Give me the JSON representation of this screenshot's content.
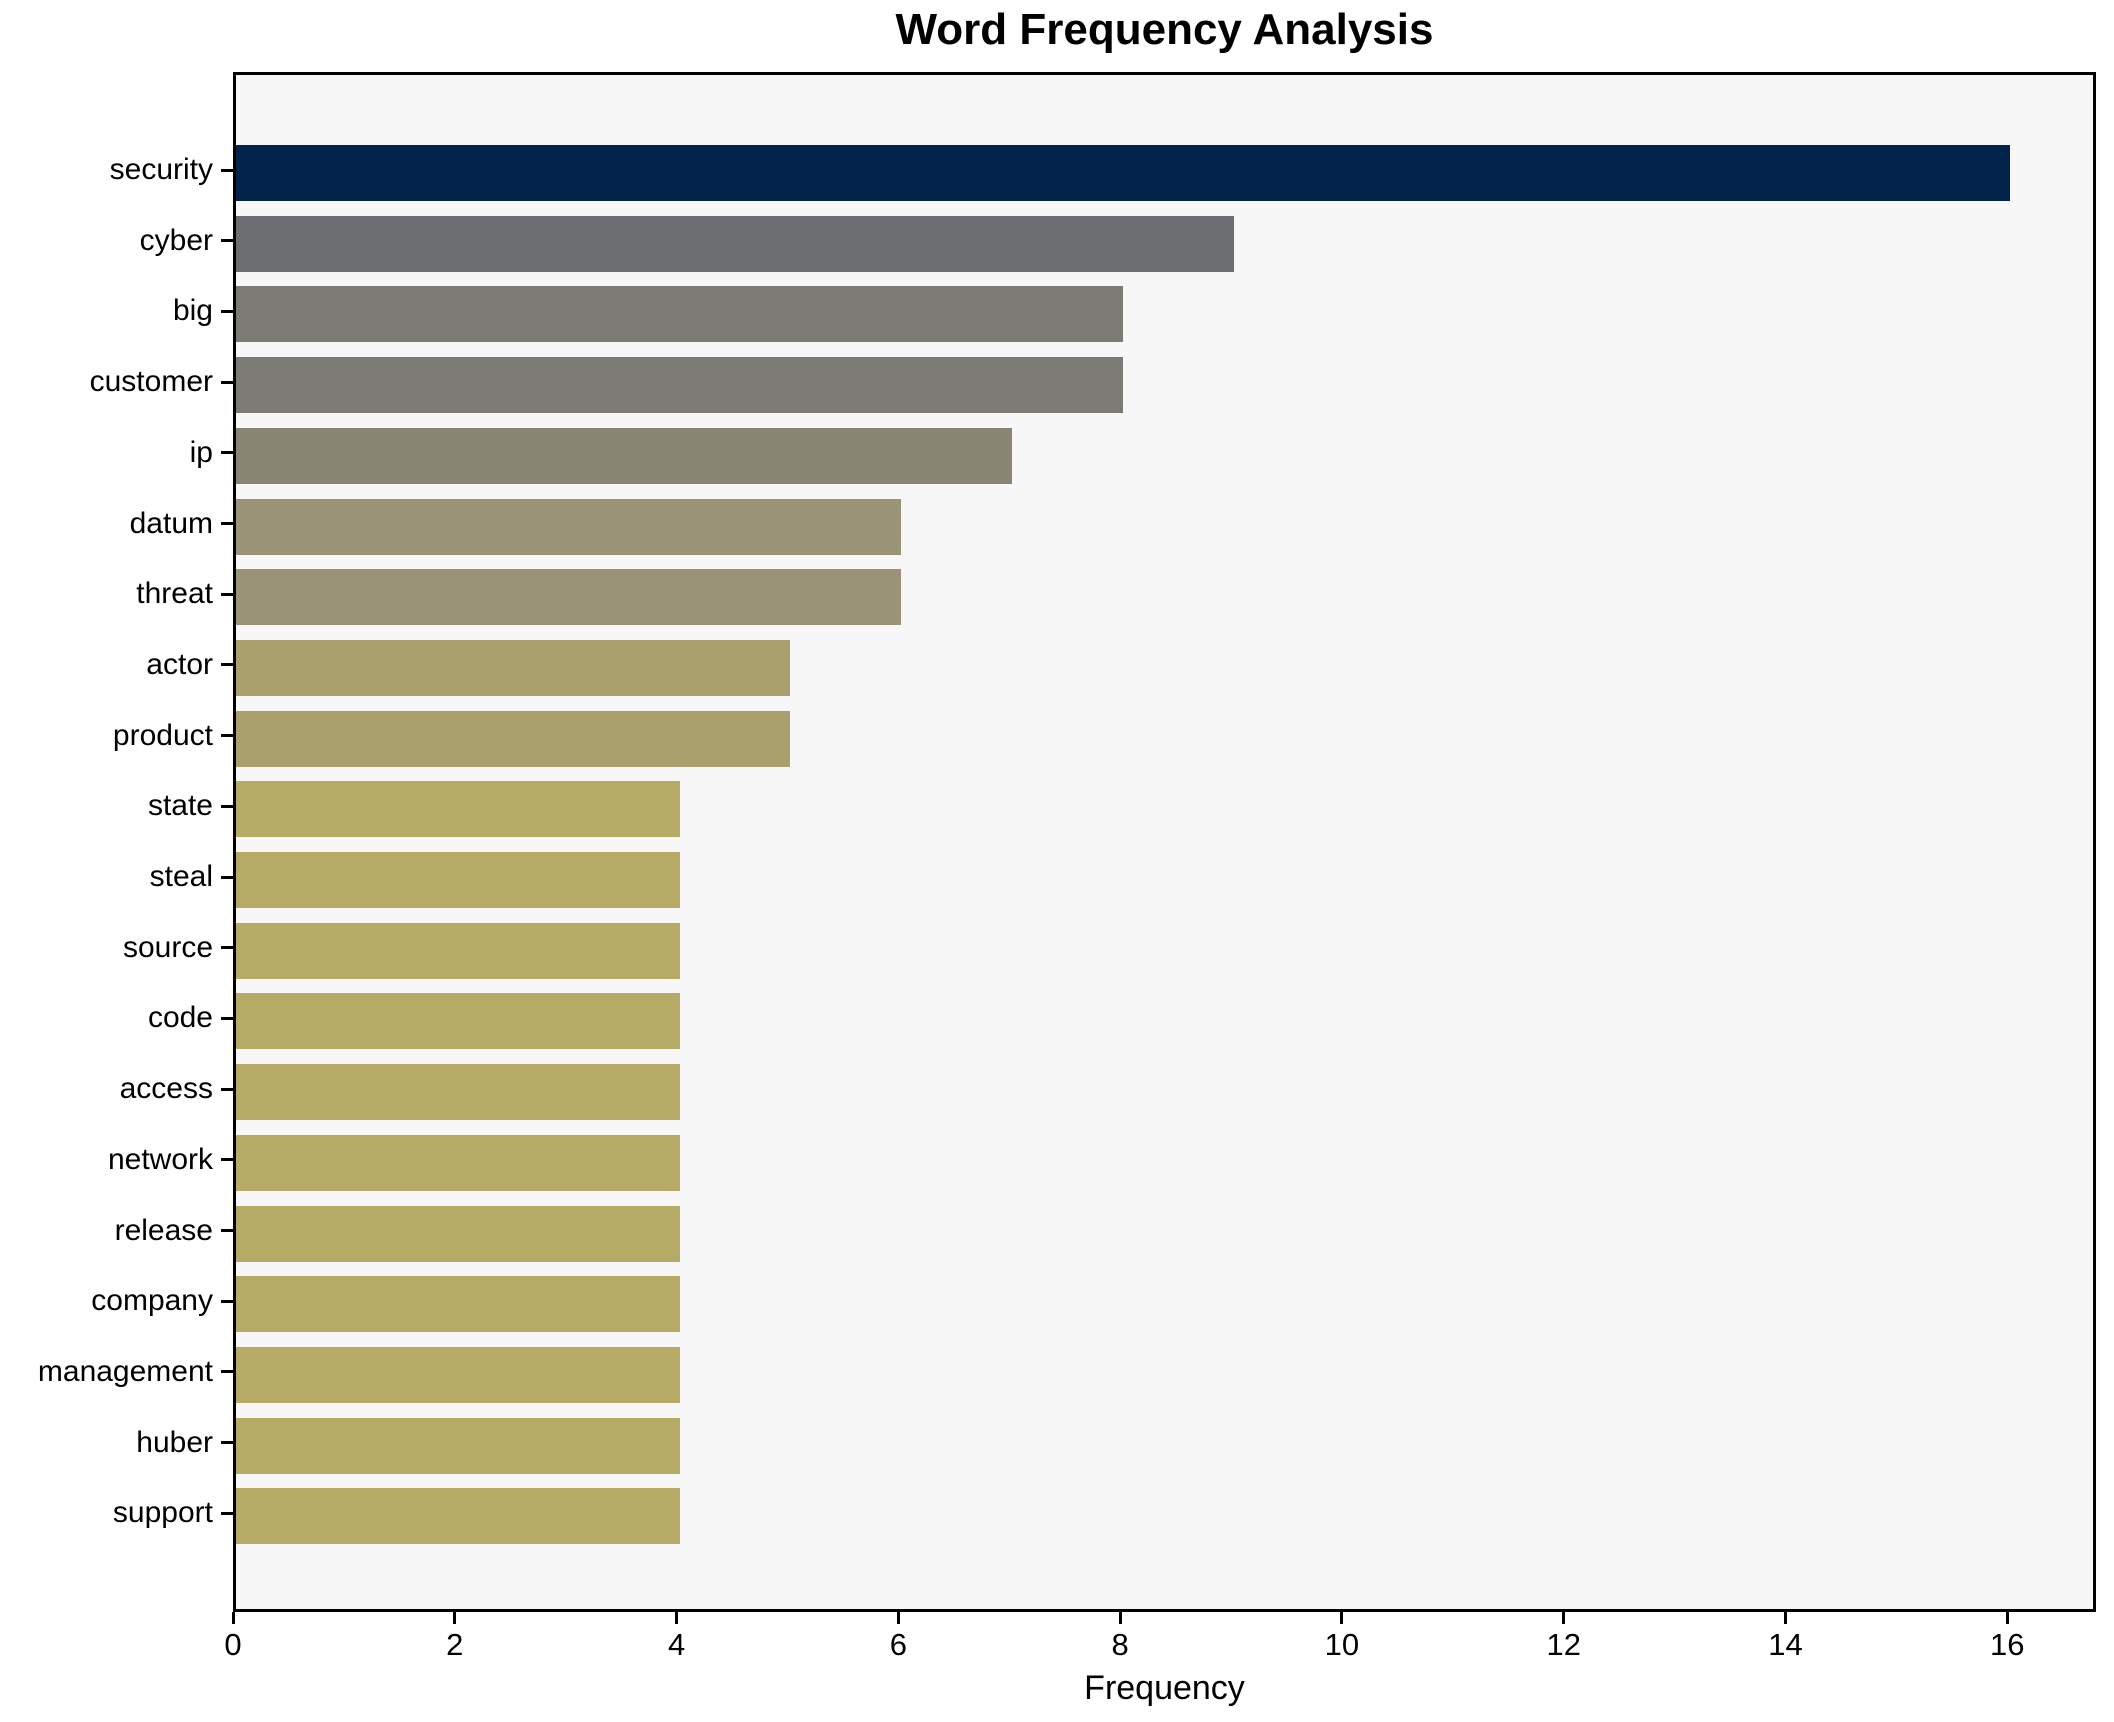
{
  "chart_data": {
    "type": "bar",
    "orientation": "horizontal",
    "title": "Word Frequency Analysis",
    "xlabel": "Frequency",
    "ylabel": "",
    "xlim": [
      0,
      16.8
    ],
    "xticks": [
      0,
      2,
      4,
      6,
      8,
      10,
      12,
      14,
      16
    ],
    "grid": false,
    "legend": "none",
    "plot_background": "#f7f7f8",
    "figure_background": "#ffffff",
    "categories": [
      "security",
      "cyber",
      "big",
      "customer",
      "ip",
      "datum",
      "threat",
      "actor",
      "product",
      "state",
      "steal",
      "source",
      "code",
      "access",
      "network",
      "release",
      "company",
      "management",
      "huber",
      "support"
    ],
    "values": [
      16,
      9,
      8,
      8,
      7,
      6,
      6,
      5,
      5,
      4,
      4,
      4,
      4,
      4,
      4,
      4,
      4,
      4,
      4,
      4
    ],
    "bar_colors": [
      "#02234a",
      "#6d6e72",
      "#7b7a75",
      "#7b7a75",
      "#888573",
      "#9a9378",
      "#9a9378",
      "#a9a06e",
      "#a9a06e",
      "#b6aa67",
      "#b6aa67",
      "#b6aa67",
      "#b6aa67",
      "#b6aa67",
      "#b6aa67",
      "#b6aa67",
      "#b6aa67",
      "#b6aa67",
      "#b6aa67",
      "#b6aa67"
    ]
  }
}
